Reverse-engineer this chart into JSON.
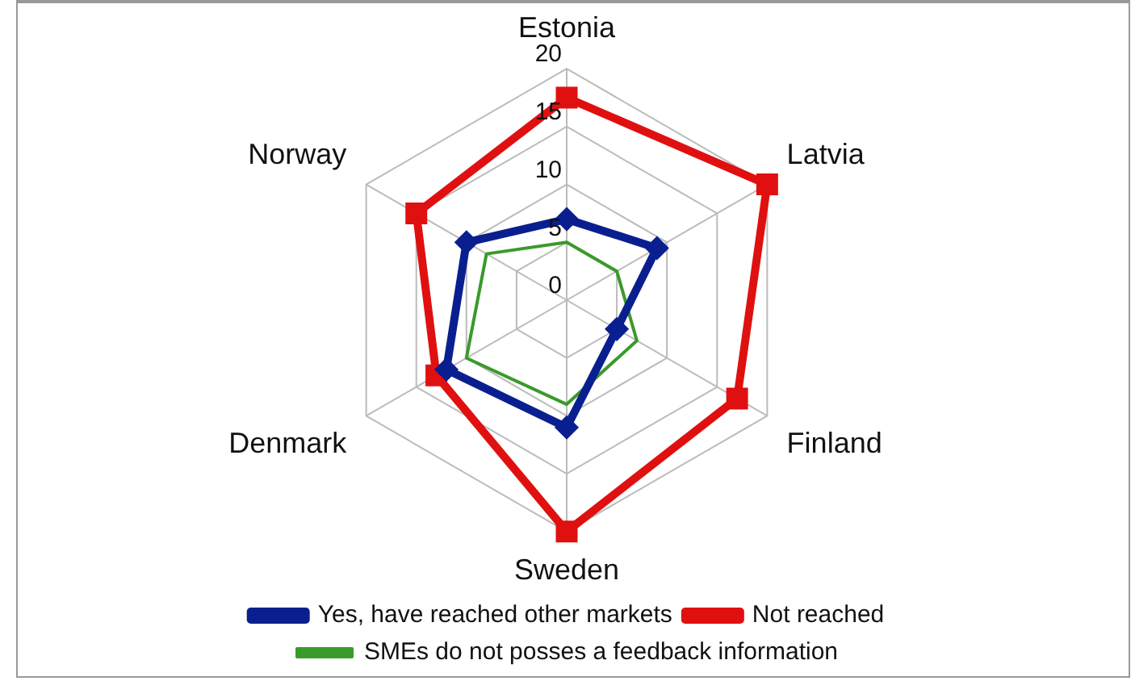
{
  "chart_data": {
    "type": "radar",
    "categories": [
      "Estonia",
      "Latvia",
      "Finland",
      "Sweden",
      "Denmark",
      "Norway"
    ],
    "series": [
      {
        "name": "Yes, have reached other markets",
        "color": "#0a1f8f",
        "values": [
          7,
          9,
          5,
          11,
          12,
          10
        ],
        "marker": "diamond"
      },
      {
        "name": "Not reached",
        "color": "#e01010",
        "values": [
          17.5,
          20,
          17,
          20,
          13,
          15
        ],
        "marker": "square"
      },
      {
        "name": "SMEs do not posses a feedback information",
        "color": "#3a9a2a",
        "values": [
          5,
          5,
          7,
          9,
          10,
          8
        ],
        "marker": "none"
      }
    ],
    "ylim": [
      0,
      20
    ],
    "yticks": [
      0,
      5,
      10,
      15,
      20
    ],
    "grid": true,
    "legend": "bottom"
  }
}
